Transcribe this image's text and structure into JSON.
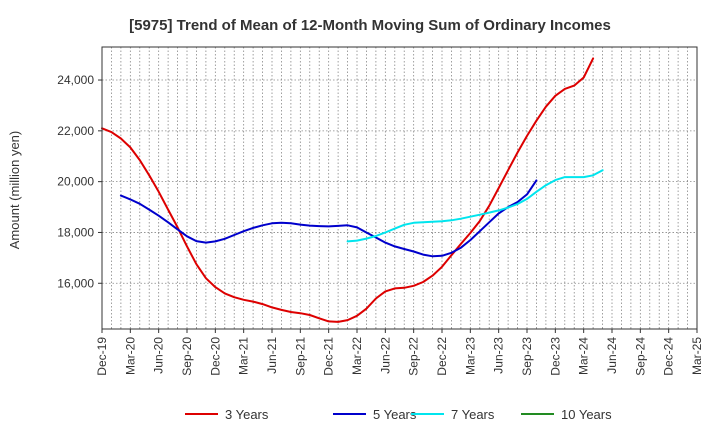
{
  "chart_data": {
    "type": "line",
    "title": "[5975]  Trend of Mean of 12-Month Moving Sum of Ordinary Incomes",
    "xlabel": "",
    "ylabel": "Amount (million yen)",
    "ylim": [
      14200,
      25300
    ],
    "yticks": [
      16000,
      18000,
      20000,
      22000,
      24000
    ],
    "ytick_labels": [
      "16,000",
      "18,000",
      "20,000",
      "22,000",
      "24,000"
    ],
    "xlim": [
      0,
      63
    ],
    "xticks": [
      0,
      3,
      6,
      9,
      12,
      15,
      18,
      21,
      24,
      27,
      30,
      33,
      36,
      39,
      42,
      45,
      48,
      51,
      54,
      57,
      60,
      63
    ],
    "xtick_labels": [
      "Dec-19",
      "Mar-20",
      "Jun-20",
      "Sep-20",
      "Dec-20",
      "Mar-21",
      "Jun-21",
      "Sep-21",
      "Dec-21",
      "Mar-22",
      "Jun-22",
      "Sep-22",
      "Dec-22",
      "Mar-23",
      "Jun-23",
      "Sep-23",
      "Dec-23",
      "Mar-24",
      "Jun-24",
      "Sep-24",
      "Dec-24",
      "Mar-25"
    ],
    "grid": true,
    "legend_position": "bottom",
    "series": [
      {
        "name": "3 Years",
        "color": "#dd0000",
        "x_start": 0,
        "values": [
          22100,
          21950,
          21700,
          21350,
          20850,
          20250,
          19600,
          18900,
          18200,
          17450,
          16750,
          16200,
          15850,
          15600,
          15450,
          15350,
          15280,
          15180,
          15050,
          14950,
          14870,
          14820,
          14750,
          14620,
          14500,
          14480,
          14550,
          14720,
          15000,
          15400,
          15680,
          15800,
          15820,
          15900,
          16050,
          16300,
          16650,
          17100,
          17550,
          17980,
          18450,
          19050,
          19750,
          20450,
          21150,
          21800,
          22400,
          22950,
          23380,
          23650,
          23780,
          24100,
          24850
        ]
      },
      {
        "name": "5 Years",
        "color": "#0000cc",
        "x_start": 2,
        "values": [
          19450,
          19300,
          19130,
          18900,
          18660,
          18400,
          18120,
          17850,
          17660,
          17600,
          17650,
          17750,
          17900,
          18050,
          18180,
          18280,
          18360,
          18380,
          18360,
          18310,
          18270,
          18250,
          18240,
          18260,
          18280,
          18200,
          18000,
          17800,
          17600,
          17450,
          17350,
          17250,
          17130,
          17060,
          17080,
          17200,
          17400,
          17700,
          18050,
          18400,
          18750,
          19000,
          19200,
          19500,
          20050
        ]
      },
      {
        "name": "7 Years",
        "color": "#00e5ee",
        "x_start": 26,
        "values": [
          17650,
          17680,
          17760,
          17860,
          18000,
          18150,
          18300,
          18380,
          18400,
          18420,
          18440,
          18480,
          18540,
          18620,
          18700,
          18780,
          18870,
          18980,
          19120,
          19320,
          19600,
          19860,
          20060,
          20180,
          20180,
          20180,
          20250,
          20450
        ]
      },
      {
        "name": "10 Years",
        "color": "#228b22",
        "x_start": 0,
        "values": []
      }
    ]
  }
}
